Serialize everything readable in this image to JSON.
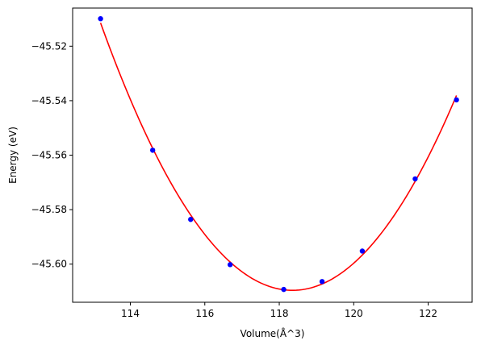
{
  "chart_data": {
    "type": "scatter",
    "title": "",
    "xlabel": "Volume(Å^3)",
    "ylabel": "Energy (eV)",
    "xlim": [
      112.45,
      123.18
    ],
    "ylim": [
      -45.614,
      -45.506
    ],
    "xticks": [
      114,
      116,
      118,
      120,
      122
    ],
    "yticks": [
      -45.52,
      -45.54,
      -45.56,
      -45.58,
      -45.6
    ],
    "grid": false,
    "series": [
      {
        "kind": "scatter",
        "color": "#0000ff",
        "x": [
          113.2,
          114.6,
          115.62,
          116.68,
          118.12,
          119.15,
          120.23,
          121.65,
          122.76
        ],
        "y": [
          -45.5099,
          -45.5582,
          -45.5836,
          -45.6002,
          -45.6093,
          -45.6064,
          -45.5952,
          -45.5687,
          -45.5397
        ]
      },
      {
        "kind": "fit_curve",
        "color": "#ff0000",
        "min_x": 118.3,
        "min_y": -45.6094
      }
    ]
  }
}
